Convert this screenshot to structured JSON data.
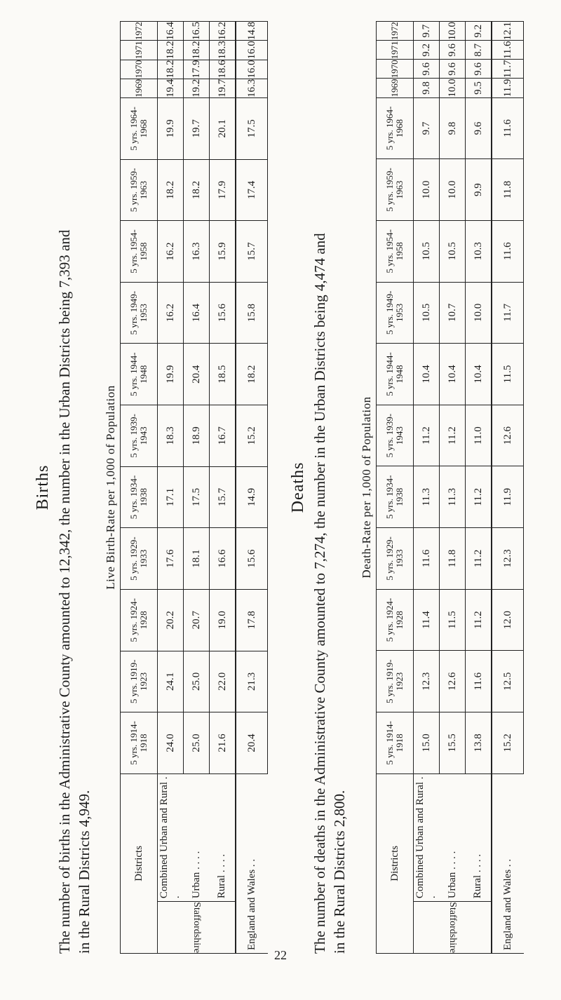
{
  "births": {
    "heading": "Births",
    "text_line1": "The number of births in the Administrative County amounted to 12,342, the number in the Urban Districts being 7,393 and",
    "text_line2": "in the Rural Districts 4,949.",
    "table": {
      "caption": "Live Birth-Rate per 1,000 of Population",
      "districts_header": "Districts",
      "group_label": "Staffordshire",
      "columns": [
        "5 yrs. 1914-1918",
        "5 yrs. 1919-1923",
        "5 yrs. 1924-1928",
        "5 yrs. 1929-1933",
        "5 yrs. 1934-1938",
        "5 yrs. 1939-1943",
        "5 yrs. 1944-1948",
        "5 yrs. 1949-1953",
        "5 yrs. 1954-1958",
        "5 yrs. 1959-1963",
        "5 yrs. 1964-1968",
        "1969",
        "1970",
        "1971",
        "1972"
      ],
      "rows": [
        {
          "label": "Combined Urban and Rural . .",
          "values": [
            "24.0",
            "24.1",
            "20.2",
            "17.6",
            "17.1",
            "18.3",
            "19.9",
            "16.2",
            "16.2",
            "18.2",
            "19.9",
            "19.4",
            "18.2",
            "18.2",
            "16.4"
          ]
        },
        {
          "label": "Urban . . . .",
          "values": [
            "25.0",
            "25.0",
            "20.7",
            "18.1",
            "17.5",
            "18.9",
            "20.4",
            "16.4",
            "16.3",
            "18.2",
            "19.7",
            "19.2",
            "17.9",
            "18.2",
            "16.5"
          ]
        },
        {
          "label": "Rural . . . .",
          "values": [
            "21.6",
            "22.0",
            "19.0",
            "16.6",
            "15.7",
            "16.7",
            "18.5",
            "15.6",
            "15.9",
            "17.9",
            "20.1",
            "19.7",
            "18.6",
            "18.3",
            "16.2"
          ]
        }
      ],
      "england": {
        "label": "England and Wales . .",
        "values": [
          "20.4",
          "21.3",
          "17.8",
          "15.6",
          "14.9",
          "15.2",
          "18.2",
          "15.8",
          "15.7",
          "17.4",
          "17.5",
          "16.3",
          "16.0",
          "16.0",
          "14.8"
        ]
      }
    }
  },
  "deaths": {
    "heading": "Deaths",
    "text_line1": "The number of deaths in the Administrative County amounted to 7,274, the number in the Urban Districts being 4,474 and",
    "text_line2": "in the Rural Districts 2,800.",
    "table": {
      "caption": "Death-Rate per 1,000 of Population",
      "districts_header": "Districts",
      "group_label": "Staffordshire",
      "columns": [
        "5 yrs. 1914-1918",
        "5 yrs. 1919-1923",
        "5 yrs. 1924-1928",
        "5 yrs. 1929-1933",
        "5 yrs. 1934-1938",
        "5 yrs. 1939-1943",
        "5 yrs. 1944-1948",
        "5 yrs. 1949-1953",
        "5 yrs. 1954-1958",
        "5 yrs. 1959-1963",
        "5 yrs. 1964-1968",
        "1969",
        "1970",
        "1971",
        "1972"
      ],
      "rows": [
        {
          "label": "Combined Urban and Rural . .",
          "values": [
            "15.0",
            "12.3",
            "11.4",
            "11.6",
            "11.3",
            "11.2",
            "10.4",
            "10.5",
            "10.5",
            "10.0",
            "9.7",
            "9.8",
            "9.6",
            "9.2",
            "9.7"
          ]
        },
        {
          "label": "Urban . . . .",
          "values": [
            "15.5",
            "12.6",
            "11.5",
            "11.8",
            "11.3",
            "11.2",
            "10.4",
            "10.7",
            "10.5",
            "10.0",
            "9.8",
            "10.0",
            "9.6",
            "9.6",
            "10.0"
          ]
        },
        {
          "label": "Rural . . . .",
          "values": [
            "13.8",
            "11.6",
            "11.2",
            "11.2",
            "11.2",
            "11.0",
            "10.4",
            "10.0",
            "10.3",
            "9.9",
            "9.6",
            "9.5",
            "9.6",
            "8.7",
            "9.2"
          ]
        }
      ],
      "england": {
        "label": "England and Wales . .",
        "values": [
          "15.2",
          "12.5",
          "12.0",
          "12.3",
          "11.9",
          "12.6",
          "11.5",
          "11.7",
          "11.6",
          "11.8",
          "11.6",
          "11.9",
          "11.7",
          "11.6",
          "12.1"
        ]
      }
    }
  },
  "page_number": "22"
}
